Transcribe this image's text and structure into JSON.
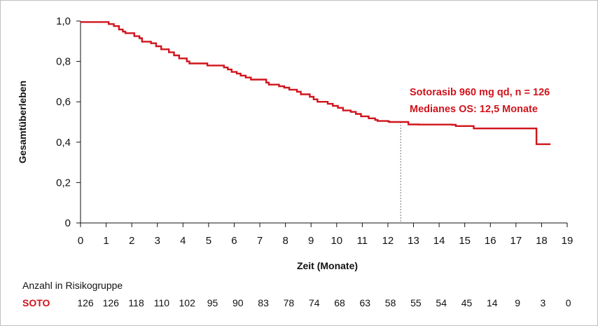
{
  "chart_data": {
    "type": "line",
    "xlabel": "Zeit (Monate)",
    "ylabel": "Gesamtüberleben",
    "xlim": [
      0,
      19
    ],
    "ylim": [
      0,
      1
    ],
    "x_ticks": [
      "0",
      "1",
      "2",
      "3",
      "4",
      "5",
      "6",
      "7",
      "8",
      "9",
      "10",
      "11",
      "12",
      "13",
      "14",
      "15",
      "16",
      "17",
      "18",
      "19"
    ],
    "y_ticks": [
      "0",
      "0,2",
      "0,4",
      "0,6",
      "0,8",
      "1,0"
    ],
    "grid": false,
    "series_color": "#d0141c",
    "series": [
      {
        "name": "Sotorasib 960 mg qd, n = 126",
        "x": [
          0,
          0.95,
          1.1,
          1.3,
          1.5,
          1.65,
          1.75,
          2.1,
          2.3,
          2.4,
          2.75,
          2.95,
          3.15,
          3.45,
          3.65,
          3.85,
          4.05,
          4.15,
          4.25,
          4.8,
          4.95,
          5.6,
          5.75,
          5.9,
          6.1,
          6.25,
          6.45,
          6.65,
          6.85,
          7.25,
          7.35,
          7.75,
          7.95,
          8.15,
          8.45,
          8.6,
          8.8,
          8.95,
          9.1,
          9.25,
          9.65,
          9.85,
          10.05,
          10.25,
          10.55,
          10.75,
          10.95,
          11.25,
          11.5,
          11.6,
          12.0,
          12.05,
          12.45,
          12.8,
          13.0,
          13.2,
          13.35,
          14.5,
          14.65,
          15.2,
          15.35,
          15.6,
          15.75,
          17.7,
          17.8,
          18.15,
          18.35
        ],
        "y": [
          0.995,
          0.995,
          0.985,
          0.975,
          0.958,
          0.948,
          0.94,
          0.925,
          0.915,
          0.898,
          0.89,
          0.875,
          0.86,
          0.845,
          0.83,
          0.815,
          0.815,
          0.8,
          0.79,
          0.79,
          0.78,
          0.77,
          0.76,
          0.748,
          0.74,
          0.73,
          0.72,
          0.71,
          0.71,
          0.695,
          0.685,
          0.677,
          0.67,
          0.66,
          0.65,
          0.637,
          0.637,
          0.625,
          0.612,
          0.6,
          0.59,
          0.58,
          0.57,
          0.557,
          0.55,
          0.54,
          0.528,
          0.518,
          0.51,
          0.505,
          0.503,
          0.5,
          0.5,
          0.488,
          0.488,
          0.487,
          0.487,
          0.486,
          0.48,
          0.48,
          0.468,
          0.468,
          0.468,
          0.468,
          0.39,
          0.39,
          0.39
        ]
      }
    ],
    "median": {
      "x": 12.5,
      "y": 0.5
    },
    "annotations": [
      "Sotorasib 960 mg qd, n = 126",
      "Medianes OS: 12,5 Monate"
    ]
  },
  "risk_table": {
    "title": "Anzahl in Risikogruppe",
    "group_label": "SOTO",
    "values": [
      "126",
      "126",
      "118",
      "110",
      "102",
      "95",
      "90",
      "83",
      "78",
      "74",
      "68",
      "63",
      "58",
      "55",
      "54",
      "45",
      "14",
      "9",
      "3",
      "0"
    ]
  }
}
